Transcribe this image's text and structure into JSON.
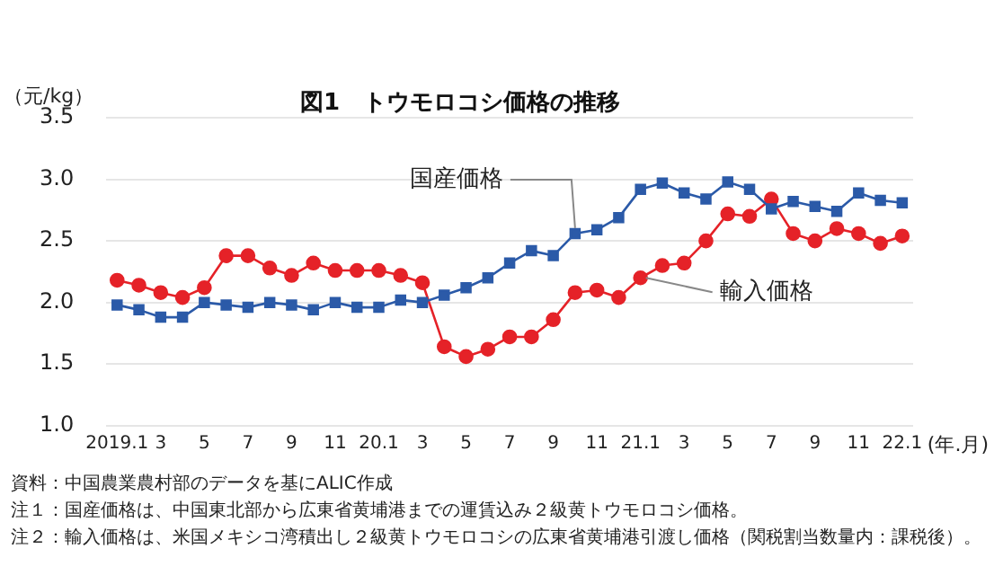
{
  "chart_data": {
    "type": "line",
    "title": "図1　トウモロコシ価格の推移",
    "ylabel": "（元/kg）",
    "xlabel": "(年.月)",
    "categories": [
      "2019.1",
      null,
      "3",
      null,
      "5",
      null,
      "7",
      null,
      "9",
      null,
      "11",
      null,
      "20.1",
      null,
      "3",
      null,
      "5",
      null,
      "7",
      null,
      "9",
      null,
      "11",
      null,
      "21.1",
      null,
      "3",
      null,
      "5",
      null,
      "7",
      null,
      "9",
      null,
      "11",
      null,
      "22.1"
    ],
    "series": [
      {
        "name": "国産価格",
        "color": "#2b5aa8",
        "marker": "square",
        "values": [
          1.98,
          1.94,
          1.88,
          1.88,
          2.0,
          1.98,
          1.96,
          2.0,
          1.98,
          1.94,
          2.0,
          1.96,
          1.96,
          2.02,
          2.0,
          2.06,
          2.12,
          2.2,
          2.32,
          2.42,
          2.38,
          2.56,
          2.59,
          2.69,
          2.92,
          2.97,
          2.89,
          2.84,
          2.98,
          2.92,
          2.76,
          2.82,
          2.78,
          2.74,
          2.89,
          2.83,
          2.81
        ]
      },
      {
        "name": "輸入価格",
        "color": "#e52228",
        "marker": "circle",
        "values": [
          2.18,
          2.14,
          2.08,
          2.04,
          2.12,
          2.38,
          2.38,
          2.28,
          2.22,
          2.32,
          2.26,
          2.26,
          2.26,
          2.22,
          2.16,
          1.64,
          1.56,
          1.62,
          1.72,
          1.72,
          1.86,
          2.08,
          2.1,
          2.04,
          2.2,
          2.3,
          2.32,
          2.5,
          2.72,
          2.7,
          2.84,
          2.56,
          2.5,
          2.6,
          2.56,
          2.48,
          2.54
        ]
      }
    ],
    "ylim": [
      1.0,
      3.5
    ],
    "yticks": [
      {
        "value": 1.0,
        "label": "1.0"
      },
      {
        "value": 1.5,
        "label": "1.5"
      },
      {
        "value": 2.0,
        "label": "2.0"
      },
      {
        "value": 2.5,
        "label": "2.5"
      },
      {
        "value": 3.0,
        "label": "3.0"
      },
      {
        "value": 3.5,
        "label": "3.5"
      }
    ],
    "grid": "y",
    "legend": false,
    "line_style": "solid",
    "annotations": [
      "資料：中国農業農村部のデータを基にALIC作成",
      "注１：国産価格は、中国東北部から広東省黄埔港までの運賃込み２級黄トウモロコシ価格。",
      "注２：輸入価格は、米国メキシコ湾積出し２級黄トウモロコシの広東省黄埔港引渡し価格（関税割当数量内：課税後）。"
    ]
  }
}
